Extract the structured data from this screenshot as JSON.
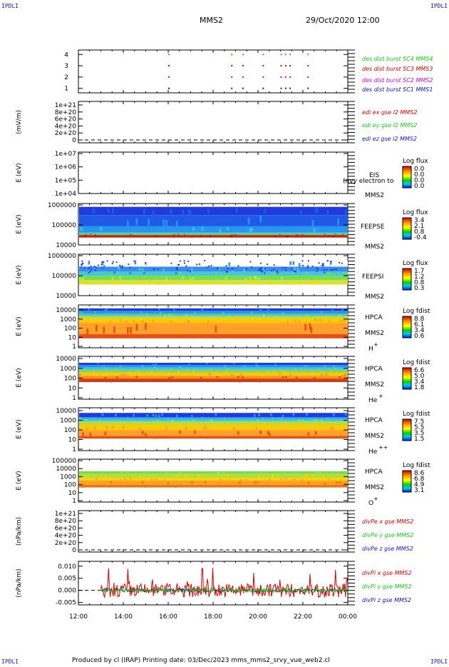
{
  "corner_labels": {
    "top_left": "IPDLI",
    "top_right": "IPDLI",
    "bottom_left": "IPDLI",
    "bottom_right": "IPDLI"
  },
  "header": {
    "title": "MMS2",
    "datetime": "29/Oct/2020 12:00"
  },
  "footer": {
    "text": "Produced by cl (IRAP)   Printing date: 03/Dec/2023   mms_mms2_srvy_vue_web2.cl"
  },
  "colors": {
    "blue": "#1414c8",
    "red": "#d20000",
    "magenta": "#d200d2",
    "green": "#19c819",
    "frame": "#000000"
  },
  "chart_data": [
    {
      "id": "burst",
      "type": "scatter",
      "x_ticks": [
        "12:00",
        "14:00",
        "16:00",
        "18:00",
        "20:00",
        "22:00",
        "00:00"
      ],
      "y_ticks": [
        "1",
        "2",
        "3",
        "4"
      ],
      "ylim": [
        0.6,
        4.4
      ],
      "ylabel": "",
      "series": [
        {
          "name": "des dist burst SC1 MMS1",
          "color": "#1414c8",
          "y": 1,
          "x_hours": [
            16.0,
            18.8,
            19.3,
            20.2,
            21.0,
            21.2,
            21.4,
            22.2
          ]
        },
        {
          "name": "des dist burst SC2 MMS2",
          "color": "#d200d2",
          "y": 2,
          "x_hours": [
            16.0,
            18.8,
            19.3,
            20.2,
            21.0,
            21.2,
            21.4,
            22.2
          ]
        },
        {
          "name": "des dist burst SC3 MMS3",
          "color": "#d20000",
          "y": 3,
          "x_hours": [
            16.0,
            18.8,
            19.3,
            20.2,
            21.0,
            21.2,
            21.4,
            22.2
          ]
        },
        {
          "name": "des dist burst SC4 MMS4",
          "color": "#19c819",
          "y": 4,
          "x_hours": [
            16.0,
            18.8,
            19.3,
            20.2,
            21.0,
            21.2,
            21.4,
            22.2
          ]
        }
      ]
    },
    {
      "id": "edi",
      "type": "line",
      "ylabel": "(mV/m)",
      "y_ticks": [
        "1e+21",
        "8e+20",
        "6e+20",
        "4e+20",
        "2e+20",
        "0"
      ],
      "ylim": [
        0,
        1e+21
      ],
      "series": [
        {
          "name": "edi ex gse l2 MMS2",
          "color": "#d20000"
        },
        {
          "name": "edi ey gse l2 MMS2",
          "color": "#19c819"
        },
        {
          "name": "edi ez gse l2 MMS2",
          "color": "#1414c8"
        }
      ]
    },
    {
      "id": "eis",
      "type": "heatmap",
      "ylabel": "E (eV)",
      "y_scale": "log",
      "y_ticks": [
        "1e+07",
        "1e+06",
        "1e+05",
        "1e+04"
      ],
      "ylim": [
        10000,
        10000000
      ],
      "instrument": "EIS",
      "spacecraft": "MMS2",
      "overlay_text": "(nvy electron to",
      "colorbar": {
        "title": "Log flux",
        "ticks": [
          "0.0",
          "0.0",
          "0.0",
          "0.0"
        ]
      }
    },
    {
      "id": "feeps_e",
      "type": "heatmap",
      "ylabel": "E (eV)",
      "y_scale": "log",
      "y_ticks": [
        "1000000",
        "100000",
        "10000"
      ],
      "ylim": [
        10000,
        1000000
      ],
      "instrument": "FEEPSE",
      "spacecraft": "MMS2",
      "colorbar": {
        "title": "Log flux",
        "ticks": [
          "3.4",
          "2.1",
          "0.8",
          "-0.4"
        ]
      }
    },
    {
      "id": "feeps_i",
      "type": "heatmap",
      "ylabel": "E (eV)",
      "y_scale": "log",
      "y_ticks": [
        "1000000",
        "100000",
        "10000"
      ],
      "ylim": [
        10000,
        1000000
      ],
      "instrument": "FEEPSI",
      "spacecraft": "MMS2",
      "colorbar": {
        "title": "Log flux",
        "ticks": [
          "1.7",
          "1.2",
          "0.8",
          "0.3"
        ]
      }
    },
    {
      "id": "hpca_h",
      "type": "heatmap",
      "ylabel": "E (eV)",
      "y_scale": "log",
      "y_ticks": [
        "10000",
        "1000",
        "100",
        "10",
        "1"
      ],
      "ylim": [
        1,
        40000
      ],
      "instrument": "HPCA",
      "spacecraft": "MMS2",
      "species": "H",
      "charge": "+",
      "colorbar": {
        "title": "Log fdist",
        "ticks": [
          "8.8",
          "6.1",
          "3.4",
          "0.6"
        ]
      }
    },
    {
      "id": "hpca_he1",
      "type": "heatmap",
      "ylabel": "E (eV)",
      "y_scale": "log",
      "y_ticks": [
        "10000",
        "1000",
        "100",
        "10",
        "1"
      ],
      "ylim": [
        1,
        40000
      ],
      "instrument": "HPCA",
      "spacecraft": "MMS2",
      "species": "He",
      "charge": "+",
      "colorbar": {
        "title": "Log fdist",
        "ticks": [
          "6.6",
          "5.0",
          "3.4",
          "1.8"
        ]
      }
    },
    {
      "id": "hpca_he2",
      "type": "heatmap",
      "ylabel": "E (eV)",
      "y_scale": "log",
      "y_ticks": [
        "10000",
        "1000",
        "100",
        "10",
        "1"
      ],
      "ylim": [
        1,
        40000
      ],
      "instrument": "HPCA",
      "spacecraft": "MMS2",
      "species": "He",
      "charge": "++",
      "colorbar": {
        "title": "Log fdist",
        "ticks": [
          "7.5",
          "5.5",
          "3.5",
          "1.5"
        ]
      }
    },
    {
      "id": "hpca_o",
      "type": "heatmap",
      "ylabel": "E (eV)",
      "y_scale": "log",
      "y_ticks": [
        "100000",
        "10000",
        "1000",
        "100",
        "10",
        "1"
      ],
      "ylim": [
        1,
        100000
      ],
      "instrument": "HPCA",
      "spacecraft": "MMS2",
      "species": "O",
      "charge": "+",
      "colorbar": {
        "title": "Log fdist",
        "ticks": [
          "8.6",
          "6.8",
          "4.9",
          "3.1"
        ]
      }
    },
    {
      "id": "divpe",
      "type": "line",
      "ylabel": "(nPa/km)",
      "y_ticks": [
        "1e+21",
        "8e+20",
        "6e+20",
        "4e+20",
        "2e+20",
        "0"
      ],
      "ylim": [
        0,
        1e+21
      ],
      "series": [
        {
          "name": "divPe x gse MMS2",
          "color": "#d20000"
        },
        {
          "name": "divPe y gse MMS2",
          "color": "#19c819"
        },
        {
          "name": "divPe z gse MMS2",
          "color": "#1414c8"
        }
      ]
    },
    {
      "id": "divpi",
      "type": "line",
      "ylabel": "(nPa/km)",
      "y_ticks": [
        "0.010",
        "0.005",
        "0.000",
        "-0.005"
      ],
      "ylim": [
        -0.006,
        0.012
      ],
      "x_ticks": [
        "12:00",
        "14:00",
        "16:00",
        "18:00",
        "20:00",
        "22:00",
        "00:00"
      ],
      "data_start_hour": 13.0,
      "series": [
        {
          "name": "divPi x gse MMS2",
          "color": "#d20000",
          "approx_range": [
            -0.002,
            0.0095
          ]
        },
        {
          "name": "divPi y gse MMS2",
          "color": "#19c819",
          "approx_range": [
            -0.001,
            0.002
          ]
        },
        {
          "name": "divPi z gse MMS2",
          "color": "#1414c8",
          "approx_range": [
            -0.002,
            0.001
          ]
        }
      ]
    }
  ]
}
